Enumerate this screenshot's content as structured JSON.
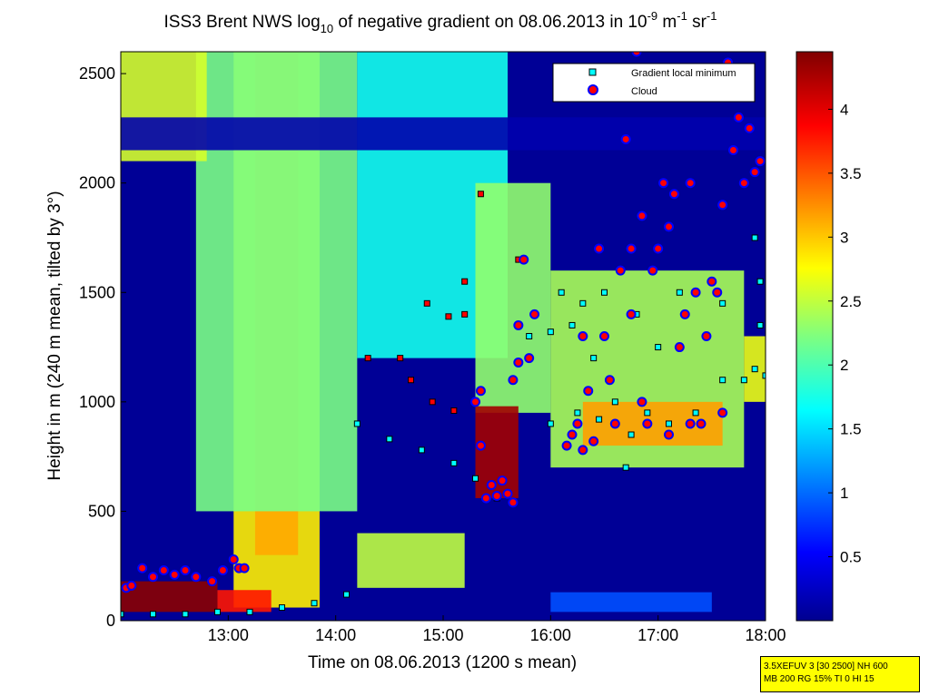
{
  "title": {
    "pre": "ISS3 Brent NWS log",
    "sub": "10",
    "mid": " of negative gradient on 08.06.2013 in 10",
    "sup1": "-9",
    "m": " m",
    "sup2": "-1",
    "sr": " sr",
    "sup3": "-1"
  },
  "info_box": {
    "line1": "3.5XEFUV 3 [30 2500] NH 600",
    "line2": "MB 200 RG 15% TI 0 HI 15"
  },
  "chart_data": {
    "type": "heatmap",
    "xlabel": "Time on 08.06.2013 (1200 s mean)",
    "ylabel": "Height in m (240 m mean, tilted by 3°)",
    "x_range_hours": [
      12.0,
      18.0
    ],
    "y_range_m": [
      0,
      2600
    ],
    "x_ticks": [
      {
        "label": "13:00",
        "hour": 13
      },
      {
        "label": "14:00",
        "hour": 14
      },
      {
        "label": "15:00",
        "hour": 15
      },
      {
        "label": "16:00",
        "hour": 16
      },
      {
        "label": "17:00",
        "hour": 17
      },
      {
        "label": "18:00",
        "hour": 18
      }
    ],
    "y_ticks": [
      {
        "label": "0",
        "value": 0
      },
      {
        "label": "500",
        "value": 500
      },
      {
        "label": "1000",
        "value": 1000
      },
      {
        "label": "1500",
        "value": 1500
      },
      {
        "label": "2000",
        "value": 2000
      },
      {
        "label": "2500",
        "value": 2500
      }
    ],
    "colorbar": {
      "colormap": "jet",
      "range": [
        0,
        4.45
      ],
      "ticks": [
        {
          "label": "0.5",
          "value": 0.5
        },
        {
          "label": "1",
          "value": 1
        },
        {
          "label": "1.5",
          "value": 1.5
        },
        {
          "label": "2",
          "value": 2
        },
        {
          "label": "2.5",
          "value": 2.5
        },
        {
          "label": "3",
          "value": 3
        },
        {
          "label": "3.5",
          "value": 3.5
        },
        {
          "label": "4",
          "value": 4
        }
      ]
    },
    "legend": {
      "position": "top-right",
      "items": [
        {
          "label": "Gradient local minimum",
          "marker": "square",
          "color": "#00ffff"
        },
        {
          "label": "Cloud",
          "marker": "circle",
          "color": "#ff0000",
          "edge": "#0000ff"
        }
      ]
    },
    "background_level": 0.1,
    "features": [
      {
        "t": [
          13.05,
          13.85
        ],
        "h": [
          60,
          2600
        ],
        "v": 2.85
      },
      {
        "t": [
          13.25,
          13.65
        ],
        "h": [
          300,
          2600
        ],
        "v": 3.15
      },
      {
        "t": [
          12.7,
          14.2
        ],
        "h": [
          500,
          2600
        ],
        "v": 2.2
      },
      {
        "t": [
          14.2,
          15.6
        ],
        "h": [
          1200,
          2600
        ],
        "v": 1.75
      },
      {
        "t": [
          12.0,
          12.8
        ],
        "h": [
          2100,
          2600
        ],
        "v": 2.6
      },
      {
        "t": [
          15.3,
          16.0
        ],
        "h": [
          950,
          2000
        ],
        "v": 2.3
      },
      {
        "t": [
          15.3,
          15.7
        ],
        "h": [
          560,
          980
        ],
        "v": 4.3
      },
      {
        "t": [
          16.0,
          17.8
        ],
        "h": [
          700,
          1600
        ],
        "v": 2.4
      },
      {
        "t": [
          16.3,
          17.6
        ],
        "h": [
          800,
          1000
        ],
        "v": 3.2
      },
      {
        "t": [
          17.8,
          18.0
        ],
        "h": [
          1000,
          1300
        ],
        "v": 2.7
      },
      {
        "t": [
          12.0,
          12.9
        ],
        "h": [
          40,
          180
        ],
        "v": 4.4
      },
      {
        "t": [
          12.9,
          13.4
        ],
        "h": [
          40,
          140
        ],
        "v": 3.8
      },
      {
        "t": [
          14.2,
          15.2
        ],
        "h": [
          150,
          400
        ],
        "v": 2.5
      },
      {
        "t": [
          16.0,
          17.5
        ],
        "h": [
          40,
          130
        ],
        "v": 0.9
      },
      {
        "t": [
          12.0,
          18.0
        ],
        "h": [
          2150,
          2300
        ],
        "v": 0.2
      }
    ],
    "cloud_points": [
      [
        12.05,
        150
      ],
      [
        12.1,
        160
      ],
      [
        12.2,
        240
      ],
      [
        12.3,
        200
      ],
      [
        12.4,
        230
      ],
      [
        12.5,
        210
      ],
      [
        12.6,
        230
      ],
      [
        12.7,
        200
      ],
      [
        12.85,
        180
      ],
      [
        12.95,
        230
      ],
      [
        13.05,
        280
      ],
      [
        13.1,
        240
      ],
      [
        13.15,
        240
      ],
      [
        15.3,
        1000
      ],
      [
        15.35,
        800
      ],
      [
        15.35,
        1050
      ],
      [
        15.4,
        560
      ],
      [
        15.45,
        620
      ],
      [
        15.5,
        570
      ],
      [
        15.55,
        640
      ],
      [
        15.6,
        580
      ],
      [
        15.65,
        540
      ],
      [
        15.65,
        1100
      ],
      [
        15.7,
        1180
      ],
      [
        15.7,
        1350
      ],
      [
        15.75,
        1650
      ],
      [
        15.8,
        1200
      ],
      [
        15.85,
        1400
      ],
      [
        16.15,
        800
      ],
      [
        16.2,
        850
      ],
      [
        16.25,
        900
      ],
      [
        16.3,
        780
      ],
      [
        16.3,
        1300
      ],
      [
        16.35,
        1050
      ],
      [
        16.4,
        820
      ],
      [
        16.45,
        1700
      ],
      [
        16.5,
        1300
      ],
      [
        16.55,
        1100
      ],
      [
        16.6,
        900
      ],
      [
        16.65,
        1600
      ],
      [
        16.7,
        2200
      ],
      [
        16.75,
        1400
      ],
      [
        16.75,
        1700
      ],
      [
        16.8,
        2600
      ],
      [
        16.85,
        1000
      ],
      [
        16.85,
        1850
      ],
      [
        16.9,
        900
      ],
      [
        16.95,
        1600
      ],
      [
        17.0,
        1700
      ],
      [
        17.05,
        2000
      ],
      [
        17.1,
        850
      ],
      [
        17.1,
        1800
      ],
      [
        17.15,
        1950
      ],
      [
        17.2,
        1250
      ],
      [
        17.25,
        1400
      ],
      [
        17.3,
        900
      ],
      [
        17.3,
        2000
      ],
      [
        17.35,
        1500
      ],
      [
        17.4,
        900
      ],
      [
        17.45,
        1300
      ],
      [
        17.5,
        1550
      ],
      [
        17.55,
        1500
      ],
      [
        17.6,
        950
      ],
      [
        17.6,
        1900
      ],
      [
        17.65,
        2550
      ],
      [
        17.7,
        2150
      ],
      [
        17.75,
        2300
      ],
      [
        17.8,
        2000
      ],
      [
        17.85,
        2250
      ],
      [
        17.9,
        2050
      ],
      [
        17.95,
        2100
      ]
    ],
    "gradient_min_points": [
      [
        12.0,
        30
      ],
      [
        12.3,
        30
      ],
      [
        12.6,
        30
      ],
      [
        12.9,
        40
      ],
      [
        13.2,
        40
      ],
      [
        13.5,
        60
      ],
      [
        13.8,
        80
      ],
      [
        14.1,
        120
      ],
      [
        14.2,
        900
      ],
      [
        14.5,
        830
      ],
      [
        14.8,
        780
      ],
      [
        15.1,
        720
      ],
      [
        15.3,
        650
      ],
      [
        15.5,
        560
      ],
      [
        15.8,
        1300
      ],
      [
        16.0,
        1320
      ],
      [
        16.2,
        1350
      ],
      [
        16.0,
        900
      ],
      [
        16.25,
        950
      ],
      [
        16.45,
        920
      ],
      [
        16.6,
        1000
      ],
      [
        16.75,
        850
      ],
      [
        16.9,
        950
      ],
      [
        17.1,
        900
      ],
      [
        17.35,
        950
      ],
      [
        17.6,
        1100
      ],
      [
        17.8,
        1100
      ],
      [
        17.9,
        1150
      ],
      [
        18.0,
        1120
      ],
      [
        16.3,
        1450
      ],
      [
        16.5,
        1500
      ],
      [
        16.8,
        1400
      ],
      [
        17.2,
        1500
      ],
      [
        17.6,
        1450
      ],
      [
        17.95,
        1550
      ],
      [
        16.1,
        1500
      ],
      [
        16.4,
        1200
      ],
      [
        16.7,
        700
      ],
      [
        17.0,
        1250
      ],
      [
        17.9,
        1750
      ],
      [
        17.95,
        1350
      ]
    ],
    "gradient_min_high_points": [
      [
        14.3,
        1200
      ],
      [
        14.6,
        1200
      ],
      [
        14.7,
        1100
      ],
      [
        14.9,
        1000
      ],
      [
        15.1,
        960
      ],
      [
        15.2,
        1550
      ],
      [
        15.2,
        1400
      ],
      [
        15.35,
        1950
      ],
      [
        15.7,
        1650
      ],
      [
        14.85,
        1450
      ],
      [
        15.05,
        1390
      ]
    ]
  }
}
